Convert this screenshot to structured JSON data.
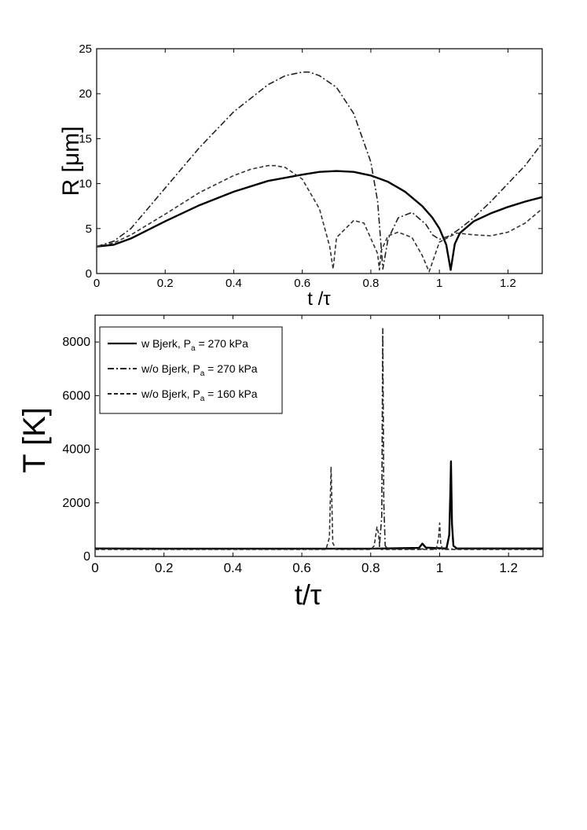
{
  "chart_data": [
    {
      "type": "line",
      "xlabel": "t /τ",
      "ylabel": "R [μm]",
      "xlim": [
        0,
        1.3
      ],
      "ylim": [
        0,
        25
      ],
      "xticks": [
        "0",
        "0.2",
        "0.4",
        "0.6",
        "0.8",
        "1",
        "1.2"
      ],
      "yticks": [
        "0",
        "5",
        "10",
        "15",
        "20",
        "25"
      ],
      "grid": false,
      "series": [
        {
          "style": "solid",
          "x": [
            0,
            0.05,
            0.1,
            0.2,
            0.3,
            0.4,
            0.5,
            0.6,
            0.65,
            0.7,
            0.75,
            0.8,
            0.85,
            0.9,
            0.95,
            0.98,
            1.0,
            1.02,
            1.033,
            1.045,
            1.06,
            1.1,
            1.15,
            1.2,
            1.25,
            1.3
          ],
          "y": [
            3.0,
            3.2,
            3.9,
            5.8,
            7.6,
            9.1,
            10.3,
            11.0,
            11.3,
            11.4,
            11.3,
            10.9,
            10.2,
            9.1,
            7.5,
            6.2,
            5.0,
            3.2,
            0.4,
            3.3,
            4.5,
            5.8,
            6.7,
            7.4,
            8.0,
            8.5
          ]
        },
        {
          "style": "dash-dot",
          "x": [
            0,
            0.05,
            0.1,
            0.2,
            0.3,
            0.4,
            0.5,
            0.55,
            0.6,
            0.62,
            0.65,
            0.7,
            0.75,
            0.8,
            0.82,
            0.835,
            0.85,
            0.88,
            0.92,
            0.96,
            0.98,
            1.0,
            1.03,
            1.06,
            1.1,
            1.15,
            1.2,
            1.25,
            1.3
          ],
          "y": [
            3.0,
            3.6,
            5.0,
            9.5,
            14.0,
            18.0,
            21.0,
            22.0,
            22.4,
            22.4,
            22.0,
            20.7,
            17.8,
            12.4,
            8.0,
            0.5,
            3.8,
            6.2,
            6.8,
            5.5,
            4.3,
            3.8,
            4.2,
            5.0,
            6.2,
            8.0,
            10.0,
            12.0,
            14.5
          ]
        },
        {
          "style": "dashed",
          "x": [
            0,
            0.05,
            0.1,
            0.2,
            0.3,
            0.4,
            0.45,
            0.5,
            0.52,
            0.55,
            0.6,
            0.65,
            0.68,
            0.69,
            0.7,
            0.75,
            0.78,
            0.82,
            0.825,
            0.83,
            0.85,
            0.88,
            0.92,
            0.95,
            0.97,
            1.0,
            1.05,
            1.1,
            1.15,
            1.2,
            1.25,
            1.3
          ],
          "y": [
            3.0,
            3.4,
            4.3,
            6.6,
            9.0,
            10.9,
            11.6,
            12.0,
            12.0,
            11.8,
            10.5,
            7.2,
            3.0,
            0.5,
            4.0,
            5.9,
            5.6,
            2.2,
            0.4,
            2.5,
            4.2,
            4.6,
            4.0,
            2.0,
            0.2,
            3.5,
            4.5,
            4.3,
            4.2,
            4.6,
            5.6,
            7.2
          ]
        }
      ]
    },
    {
      "type": "line",
      "xlabel": "t/τ",
      "ylabel": "T [K]",
      "xlim": [
        0,
        1.3
      ],
      "ylim": [
        0,
        9000
      ],
      "xticks": [
        "0",
        "0.2",
        "0.4",
        "0.6",
        "0.8",
        "1",
        "1.2"
      ],
      "yticks": [
        "0",
        "2000",
        "4000",
        "6000",
        "8000"
      ],
      "grid": false,
      "legend_position": "top-left",
      "series": [
        {
          "name": "w Bjerk,    P = 270 kPa",
          "label_main": "w Bjerk,    P",
          "label_sub": "a",
          "label_tail": " = 270 kPa",
          "style": "solid",
          "x": [
            0,
            0.2,
            0.4,
            0.6,
            0.8,
            0.94,
            0.95,
            0.96,
            1.02,
            1.028,
            1.031,
            1.033,
            1.036,
            1.04,
            1.05,
            1.1,
            1.2,
            1.3
          ],
          "y": [
            300,
            290,
            290,
            290,
            290,
            320,
            480,
            330,
            300,
            800,
            2400,
            3550,
            1200,
            400,
            300,
            300,
            300,
            300
          ]
        },
        {
          "name": "w/o Bjerk, P = 270 kPa",
          "label_main": "w/o Bjerk, P",
          "label_sub": "a",
          "label_tail": " = 270 kPa",
          "style": "dash-dot",
          "x": [
            0,
            0.2,
            0.4,
            0.6,
            0.8,
            0.825,
            0.832,
            0.835,
            0.838,
            0.842,
            0.85,
            0.9,
            1.0,
            1.1,
            1.2,
            1.3
          ],
          "y": [
            280,
            280,
            280,
            280,
            280,
            320,
            1500,
            8500,
            2000,
            400,
            280,
            280,
            280,
            280,
            280,
            280
          ]
        },
        {
          "name": "w/o Bjerk, P = 160 kPa",
          "label_main": "w/o Bjerk, P",
          "label_sub": "a",
          "label_tail": " = 160 kPa",
          "style": "dashed",
          "x": [
            0,
            0.2,
            0.4,
            0.6,
            0.67,
            0.68,
            0.685,
            0.69,
            0.7,
            0.75,
            0.8,
            0.81,
            0.818,
            0.822,
            0.826,
            0.83,
            0.9,
            0.99,
            0.997,
            1.0,
            1.003,
            1.008,
            1.05,
            1.1,
            1.2,
            1.3
          ],
          "y": [
            260,
            260,
            260,
            260,
            260,
            700,
            3350,
            500,
            260,
            260,
            260,
            400,
            1100,
            900,
            350,
            260,
            260,
            260,
            700,
            1250,
            500,
            260,
            260,
            260,
            260,
            260
          ]
        }
      ]
    }
  ]
}
